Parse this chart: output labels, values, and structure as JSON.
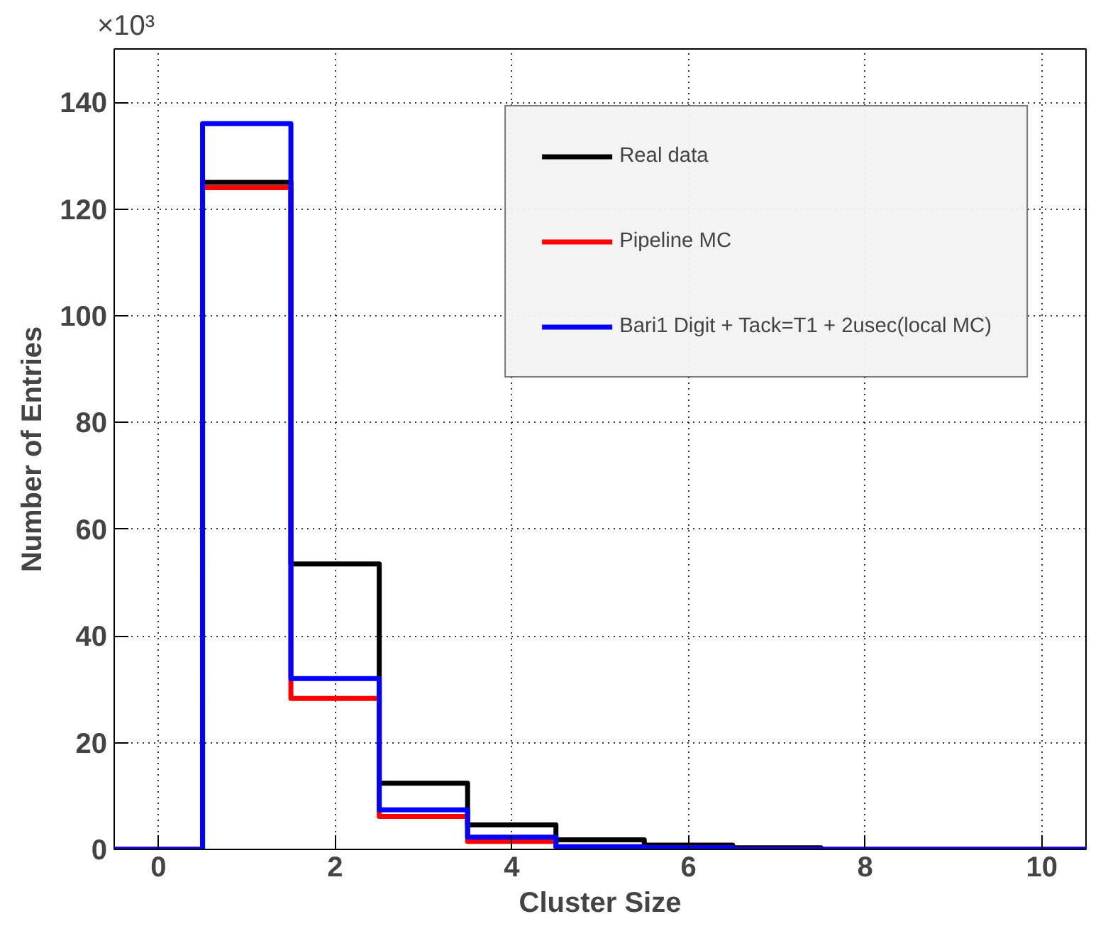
{
  "chart_data": {
    "type": "histogram",
    "xlabel": "Cluster Size",
    "ylabel": "Number of Entries",
    "annotations": [
      "×10³"
    ],
    "bins": [
      -0.5,
      0.5,
      1.5,
      2.5,
      3.5,
      4.5,
      5.5,
      6.5,
      7.5,
      8.5,
      9.5,
      10.5
    ],
    "series": [
      {
        "name": "Real data",
        "color": "#000000",
        "values": [
          0,
          125,
          53.5,
          12.4,
          4.6,
          1.8,
          0.8,
          0.3,
          0,
          0,
          0
        ]
      },
      {
        "name": "Pipeline MC",
        "color": "#ff0000",
        "values": [
          0,
          124,
          28.3,
          6.2,
          1.5,
          0.5,
          0.3,
          0,
          0,
          0,
          0
        ]
      },
      {
        "name": "Bari1 Digit + Tack=T1 + 2usec(local MC)",
        "color": "#0000ff",
        "values": [
          0,
          136,
          32,
          7.4,
          2.3,
          0.5,
          0.3,
          0,
          0,
          0,
          0
        ]
      }
    ],
    "xlim": [
      -0.5,
      10.5
    ],
    "ylim": [
      0,
      150
    ],
    "xticks": [
      0,
      2,
      4,
      6,
      8,
      10
    ],
    "yticks": [
      0,
      20,
      40,
      60,
      80,
      100,
      120,
      140
    ],
    "grid": true,
    "legend": "top right"
  }
}
